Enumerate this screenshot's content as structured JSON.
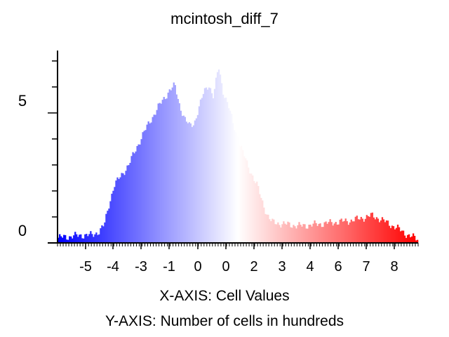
{
  "chart_data": {
    "type": "bar",
    "title": "mcintosh_diff_7",
    "xlabel": "X-AXIS: Cell Values",
    "ylabel": "Y-AXIS: Number of cells in hundreds",
    "x_tick_labels": [
      "-5",
      "-4",
      "-3",
      "-1",
      "0",
      "0",
      "2",
      "3",
      "4",
      "6",
      "7",
      "8"
    ],
    "y_tick_labels": [
      "0",
      "5"
    ],
    "ylim": [
      0,
      7.4
    ],
    "grid": false,
    "legend": "none",
    "color_ramp": [
      "#0000ff",
      "#ffffff",
      "#ff0000"
    ],
    "histogram_profile": [
      [
        -6.0,
        0.2
      ],
      [
        -5.5,
        0.25
      ],
      [
        -5.0,
        0.3
      ],
      [
        -4.6,
        0.3
      ],
      [
        -4.3,
        0.45
      ],
      [
        -4.1,
        0.7
      ],
      [
        -3.9,
        1.5
      ],
      [
        -3.7,
        2.2
      ],
      [
        -3.4,
        2.6
      ],
      [
        -3.1,
        3.0
      ],
      [
        -2.8,
        3.6
      ],
      [
        -2.5,
        4.2
      ],
      [
        -2.2,
        4.7
      ],
      [
        -1.9,
        5.2
      ],
      [
        -1.6,
        5.6
      ],
      [
        -1.4,
        5.9
      ],
      [
        -1.2,
        6.05
      ],
      [
        -1.0,
        5.3
      ],
      [
        -0.8,
        4.8
      ],
      [
        -0.6,
        4.5
      ],
      [
        -0.4,
        4.6
      ],
      [
        -0.2,
        5.2
      ],
      [
        0.0,
        5.8
      ],
      [
        0.2,
        6.1
      ],
      [
        0.4,
        5.6
      ],
      [
        0.6,
        6.8
      ],
      [
        0.8,
        5.8
      ],
      [
        1.0,
        5.3
      ],
      [
        1.2,
        4.6
      ],
      [
        1.4,
        4.0
      ],
      [
        1.6,
        3.5
      ],
      [
        1.8,
        3.0
      ],
      [
        2.0,
        2.6
      ],
      [
        2.2,
        2.2
      ],
      [
        2.4,
        1.6
      ],
      [
        2.6,
        1.1
      ],
      [
        2.8,
        0.8
      ],
      [
        3.1,
        0.75
      ],
      [
        3.5,
        0.7
      ],
      [
        4.0,
        0.65
      ],
      [
        4.5,
        0.7
      ],
      [
        5.0,
        0.75
      ],
      [
        5.5,
        0.8
      ],
      [
        6.0,
        0.85
      ],
      [
        6.5,
        0.95
      ],
      [
        6.9,
        1.05
      ],
      [
        7.2,
        0.95
      ],
      [
        7.6,
        0.75
      ],
      [
        8.0,
        0.55
      ],
      [
        8.4,
        0.3
      ],
      [
        8.8,
        0.15
      ]
    ]
  }
}
